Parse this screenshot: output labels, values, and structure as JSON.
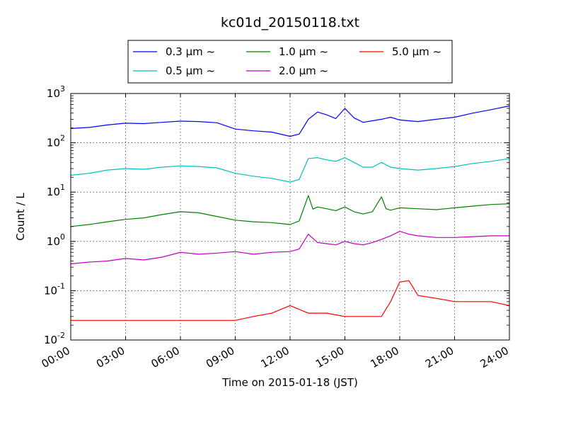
{
  "chart_data": {
    "type": "line",
    "title": "kc01d_20150118.txt",
    "xlabel": "Time on 2015-01-18 (JST)",
    "ylabel": "Count / L",
    "yscale": "log",
    "ylim": [
      0.01,
      1000
    ],
    "xlim": [
      "2015-01-18 00:00",
      "2015-01-19 00:00"
    ],
    "grid": true,
    "legend_position": "top-center",
    "x_ticks": [
      "00:00",
      "03:00",
      "06:00",
      "09:00",
      "12:00",
      "15:00",
      "18:00",
      "21:00",
      "24:00"
    ],
    "y_ticks": [
      {
        "base": "10",
        "exp": "-2"
      },
      {
        "base": "10",
        "exp": "-1"
      },
      {
        "base": "10",
        "exp": "0"
      },
      {
        "base": "10",
        "exp": "1"
      },
      {
        "base": "10",
        "exp": "2"
      },
      {
        "base": "10",
        "exp": "3"
      }
    ],
    "series": [
      {
        "name": "0.3 μm ~",
        "color": "#0000ff",
        "x": [
          "00:00",
          "01:00",
          "02:00",
          "03:00",
          "04:00",
          "05:00",
          "06:00",
          "07:00",
          "08:00",
          "09:00",
          "10:00",
          "11:00",
          "12:00",
          "12:30",
          "13:00",
          "13:30",
          "14:00",
          "14:30",
          "15:00",
          "15:30",
          "16:00",
          "16:30",
          "17:00",
          "17:30",
          "18:00",
          "19:00",
          "20:00",
          "21:00",
          "22:00",
          "23:00",
          "24:00"
        ],
        "values": [
          195,
          205,
          230,
          250,
          245,
          260,
          275,
          270,
          255,
          190,
          175,
          165,
          135,
          150,
          300,
          420,
          370,
          310,
          500,
          320,
          260,
          280,
          300,
          330,
          290,
          270,
          300,
          330,
          400,
          470,
          560
        ]
      },
      {
        "name": "0.5 μm ~",
        "color": "#00bfbf",
        "x": [
          "00:00",
          "01:00",
          "02:00",
          "03:00",
          "04:00",
          "05:00",
          "06:00",
          "07:00",
          "08:00",
          "09:00",
          "10:00",
          "11:00",
          "12:00",
          "12:30",
          "13:00",
          "13:30",
          "14:00",
          "14:30",
          "15:00",
          "15:30",
          "16:00",
          "16:30",
          "17:00",
          "17:30",
          "18:00",
          "19:00",
          "20:00",
          "21:00",
          "22:00",
          "23:00",
          "24:00"
        ],
        "values": [
          22,
          24,
          28,
          30,
          29,
          32,
          34,
          33,
          31,
          24,
          21,
          19,
          16,
          18,
          48,
          50,
          45,
          42,
          50,
          40,
          32,
          32,
          40,
          32,
          30,
          28,
          30,
          33,
          38,
          42,
          48
        ]
      },
      {
        "name": "1.0 μm ~",
        "color": "#008000",
        "x": [
          "00:00",
          "01:00",
          "02:00",
          "03:00",
          "04:00",
          "05:00",
          "06:00",
          "07:00",
          "08:00",
          "09:00",
          "10:00",
          "11:00",
          "12:00",
          "12:30",
          "13:00",
          "13:15",
          "13:30",
          "14:00",
          "14:30",
          "15:00",
          "15:30",
          "16:00",
          "16:30",
          "17:00",
          "17:15",
          "17:30",
          "18:00",
          "19:00",
          "20:00",
          "21:00",
          "22:00",
          "23:00",
          "24:00"
        ],
        "values": [
          2.0,
          2.2,
          2.5,
          2.8,
          3.0,
          3.5,
          4.0,
          3.8,
          3.2,
          2.7,
          2.5,
          2.4,
          2.2,
          2.6,
          8.5,
          4.5,
          5.0,
          4.6,
          4.2,
          5.0,
          4.0,
          3.6,
          4.0,
          8.0,
          4.6,
          4.3,
          4.8,
          4.6,
          4.4,
          4.8,
          5.2,
          5.6,
          5.8
        ]
      },
      {
        "name": "2.0 μm ~",
        "color": "#bf00bf",
        "x": [
          "00:00",
          "01:00",
          "02:00",
          "03:00",
          "04:00",
          "05:00",
          "06:00",
          "07:00",
          "08:00",
          "09:00",
          "10:00",
          "11:00",
          "12:00",
          "12:30",
          "13:00",
          "13:30",
          "14:00",
          "14:30",
          "15:00",
          "15:30",
          "16:00",
          "16:30",
          "17:00",
          "17:30",
          "18:00",
          "18:30",
          "19:00",
          "20:00",
          "21:00",
          "22:00",
          "23:00",
          "24:00"
        ],
        "values": [
          0.35,
          0.38,
          0.4,
          0.45,
          0.42,
          0.48,
          0.6,
          0.55,
          0.58,
          0.62,
          0.55,
          0.6,
          0.62,
          0.7,
          1.4,
          0.95,
          0.9,
          0.85,
          1.0,
          0.9,
          0.85,
          0.95,
          1.1,
          1.3,
          1.6,
          1.4,
          1.3,
          1.2,
          1.2,
          1.25,
          1.3,
          1.3
        ]
      },
      {
        "name": "5.0 μm ~",
        "color": "#ff0000",
        "x": [
          "00:00",
          "01:00",
          "02:00",
          "03:00",
          "04:00",
          "05:00",
          "06:00",
          "07:00",
          "08:00",
          "09:00",
          "10:00",
          "11:00",
          "12:00",
          "13:00",
          "14:00",
          "15:00",
          "16:00",
          "17:00",
          "17:30",
          "18:00",
          "18:30",
          "19:00",
          "20:00",
          "21:00",
          "22:00",
          "23:00",
          "24:00"
        ],
        "values": [
          0.025,
          0.025,
          0.025,
          0.025,
          0.025,
          0.025,
          0.025,
          0.025,
          0.025,
          0.025,
          0.03,
          0.035,
          0.05,
          0.035,
          0.035,
          0.03,
          0.03,
          0.03,
          0.06,
          0.15,
          0.16,
          0.08,
          0.07,
          0.06,
          0.06,
          0.06,
          0.05
        ]
      }
    ]
  }
}
